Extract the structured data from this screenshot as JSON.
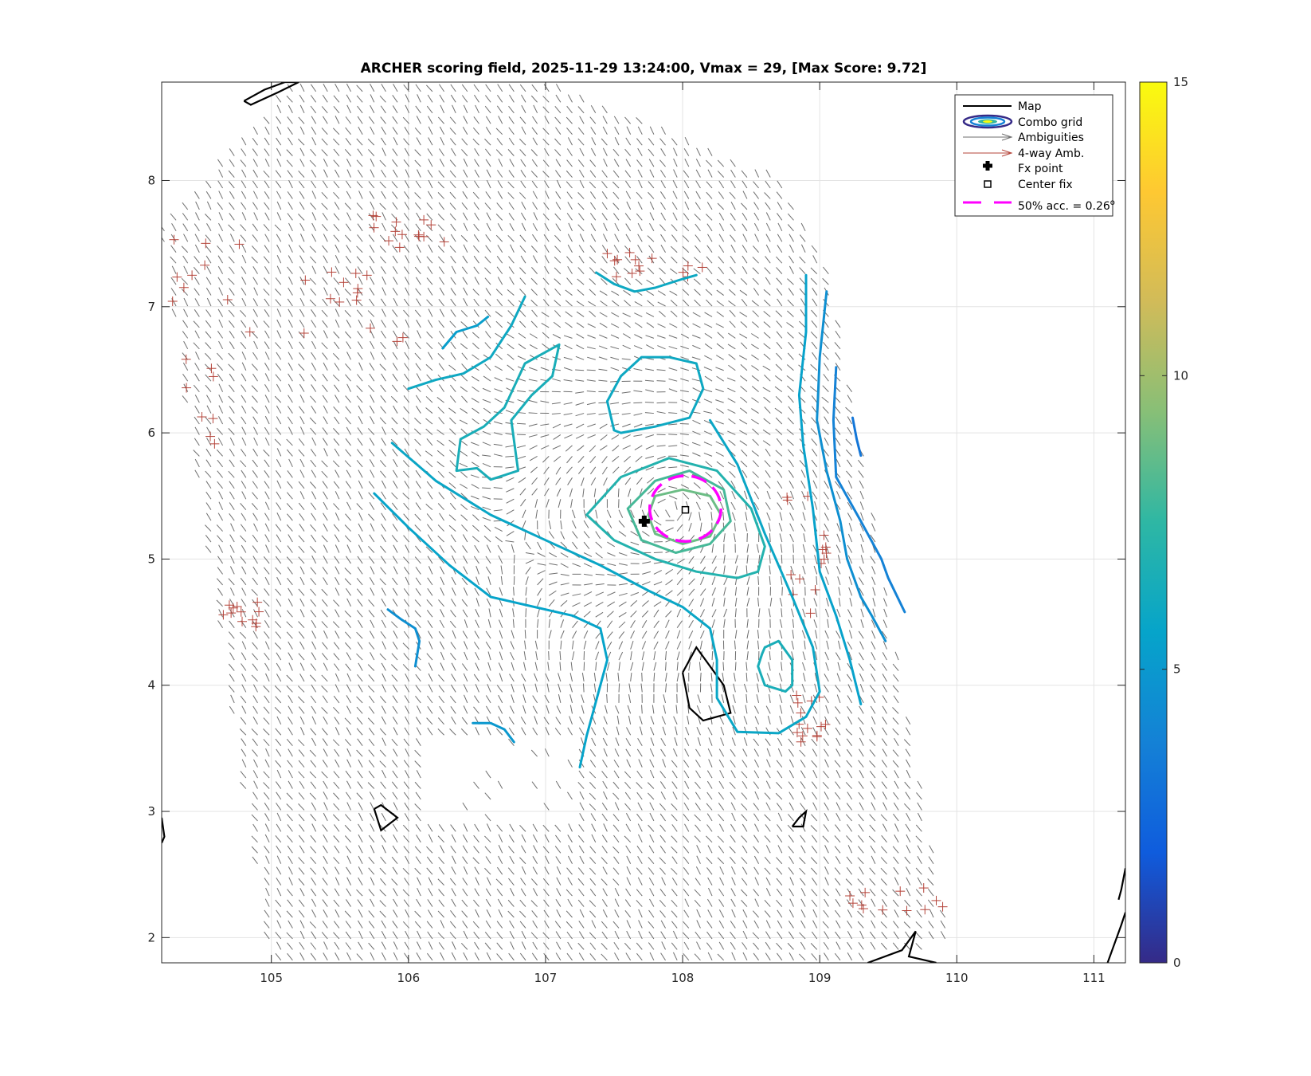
{
  "chart_data": {
    "type": "contour-map",
    "title": "ARCHER scoring field, 2025-11-29 13:24:00, Vmax = 29, [Max Score: 9.72]",
    "xlim": [
      104.2,
      111.23
    ],
    "ylim": [
      1.8,
      8.78
    ],
    "xticks": [
      105,
      106,
      107,
      108,
      109,
      110,
      111
    ],
    "yticks": [
      2,
      3,
      4,
      5,
      6,
      7,
      8
    ],
    "grid": true,
    "legend_position": "top-right",
    "legend": [
      {
        "label": "Map",
        "symbol": "black-line"
      },
      {
        "label": "Combo grid",
        "symbol": "contour-ellipse"
      },
      {
        "label": "Ambiguities",
        "symbol": "gray-arrow"
      },
      {
        "label": "4-way Amb.",
        "symbol": "red-arrow"
      },
      {
        "label": "Fx point",
        "symbol": "plus-marker"
      },
      {
        "label": "Center fix",
        "symbol": "square-marker"
      },
      {
        "label": "50% acc. = 0.26",
        "suffix": "o",
        "symbol": "magenta-dash"
      }
    ],
    "colorbar": {
      "min": 0,
      "max": 15,
      "ticks": [
        0,
        5,
        10,
        15
      ],
      "colormap": "parula"
    },
    "fx_point": {
      "lon": 107.72,
      "lat": 5.3
    },
    "center_fix": {
      "lon": 108.02,
      "lat": 5.39
    },
    "accuracy_circle": {
      "center_lon": 108.02,
      "center_lat": 5.4,
      "radius_deg": 0.26
    },
    "swath": {
      "lon": [
        104.2,
        105.2,
        107.0,
        108.7,
        109.1,
        109.95,
        109.3,
        108.0,
        106.5,
        105.0
      ],
      "lat": [
        7.6,
        8.78,
        8.78,
        8.0,
        7.2,
        1.95,
        1.8,
        1.8,
        1.8,
        1.8
      ]
    },
    "contours": [
      {
        "level": 3.2,
        "lon": [
          109.24,
          109.27,
          109.3
        ],
        "lat": [
          6.12,
          5.95,
          5.82
        ]
      },
      {
        "level": 3.8,
        "lon": [
          109.12,
          109.1,
          109.12,
          109.3,
          109.45,
          109.5,
          109.62
        ],
        "lat": [
          6.52,
          6.1,
          5.65,
          5.3,
          5.0,
          4.85,
          4.58
        ]
      },
      {
        "level": 4.5,
        "lon": [
          109.05,
          109.0,
          108.98,
          109.05,
          109.15,
          109.2,
          109.3,
          109.38,
          109.48
        ],
        "lat": [
          7.12,
          6.6,
          6.1,
          5.7,
          5.3,
          5.0,
          4.7,
          4.55,
          4.35
        ]
      },
      {
        "level": 4.5,
        "lon": [
          105.85,
          105.95,
          106.05,
          106.08,
          106.05
        ],
        "lat": [
          4.6,
          4.52,
          4.45,
          4.35,
          4.15
        ]
      },
      {
        "level": 5.0,
        "lon": [
          106.47,
          106.6,
          106.7,
          106.77
        ],
        "lat": [
          3.7,
          3.7,
          3.65,
          3.55
        ]
      },
      {
        "level": 5.3,
        "lon": [
          106.25,
          106.35,
          106.5,
          106.58
        ],
        "lat": [
          6.67,
          6.8,
          6.85,
          6.92
        ]
      },
      {
        "level": 5.5,
        "lon": [
          108.9,
          108.9,
          108.85,
          108.88,
          108.95,
          109.0,
          109.12,
          109.22,
          109.3
        ],
        "lat": [
          7.25,
          6.8,
          6.3,
          5.9,
          5.4,
          4.9,
          4.55,
          4.2,
          3.85
        ]
      },
      {
        "level": 5.6,
        "lon": [
          105.75,
          106.0,
          106.3,
          106.6,
          107.0,
          107.2,
          107.4,
          107.45,
          107.4,
          107.35,
          107.3,
          107.25
        ],
        "lat": [
          5.52,
          5.25,
          4.95,
          4.7,
          4.6,
          4.55,
          4.45,
          4.2,
          4.0,
          3.8,
          3.6,
          3.35
        ]
      },
      {
        "level": 5.8,
        "lon": [
          105.88,
          106.2,
          106.6,
          107.0,
          107.4,
          107.75,
          108.0,
          108.2,
          108.25,
          108.25,
          108.4,
          108.7,
          108.9,
          109.0,
          108.95,
          108.8,
          108.6,
          108.4,
          108.2
        ],
        "lat": [
          5.92,
          5.62,
          5.35,
          5.15,
          4.95,
          4.75,
          4.62,
          4.45,
          4.2,
          3.9,
          3.63,
          3.62,
          3.75,
          3.95,
          4.3,
          4.7,
          5.2,
          5.75,
          6.1
        ]
      },
      {
        "level": 6.0,
        "lon": [
          106.0,
          106.2,
          106.4,
          106.6,
          106.75,
          106.85
        ],
        "lat": [
          6.35,
          6.42,
          6.47,
          6.6,
          6.85,
          7.08
        ]
      },
      {
        "level": 6.0,
        "lon": [
          107.37,
          107.5,
          107.65,
          107.8,
          108.0,
          108.1
        ],
        "lat": [
          7.27,
          7.18,
          7.12,
          7.15,
          7.22,
          7.25
        ]
      },
      {
        "level": 6.0,
        "lon": [
          107.5,
          107.45,
          107.55,
          107.7,
          107.9,
          108.1,
          108.15,
          108.05,
          107.8,
          107.55,
          107.5
        ],
        "lat": [
          6.02,
          6.25,
          6.45,
          6.6,
          6.6,
          6.55,
          6.35,
          6.12,
          6.05,
          6.0,
          6.02
        ]
      },
      {
        "level": 6.5,
        "lon": [
          106.7,
          106.85,
          107.1,
          107.05,
          106.9,
          106.75,
          106.8,
          106.6,
          106.5,
          106.35,
          106.38,
          106.55,
          106.7
        ],
        "lat": [
          6.2,
          6.55,
          6.7,
          6.45,
          6.3,
          6.1,
          5.7,
          5.63,
          5.72,
          5.7,
          5.95,
          6.05,
          6.2
        ]
      },
      {
        "level": 6.5,
        "lon": [
          108.6,
          108.7,
          108.8,
          108.8,
          108.75,
          108.6,
          108.55,
          108.58,
          108.6
        ],
        "lat": [
          4.3,
          4.35,
          4.2,
          4.0,
          3.95,
          4.0,
          4.15,
          4.25,
          4.3
        ]
      },
      {
        "level": 7.0,
        "lon": [
          107.3,
          107.55,
          107.9,
          108.25,
          108.5,
          108.6,
          108.55,
          108.4,
          108.1,
          107.8,
          107.5,
          107.3
        ],
        "lat": [
          5.35,
          5.65,
          5.8,
          5.7,
          5.4,
          5.1,
          4.9,
          4.85,
          4.9,
          5.0,
          5.15,
          5.35
        ]
      },
      {
        "level": 8.0,
        "lon": [
          107.6,
          107.8,
          108.05,
          108.3,
          108.35,
          108.2,
          107.95,
          107.7,
          107.6
        ],
        "lat": [
          5.4,
          5.62,
          5.7,
          5.55,
          5.3,
          5.12,
          5.05,
          5.15,
          5.4
        ]
      },
      {
        "level": 8.8,
        "lon": [
          107.8,
          108.0,
          108.2,
          108.28,
          108.2,
          108.0,
          107.8,
          107.75,
          107.8
        ],
        "lat": [
          5.5,
          5.55,
          5.5,
          5.35,
          5.18,
          5.12,
          5.2,
          5.35,
          5.5
        ]
      }
    ],
    "map_outlines": [
      {
        "lon": [
          104.8,
          104.95,
          105.1,
          105.2,
          105.05,
          104.85,
          104.8
        ],
        "lat": [
          8.63,
          8.72,
          8.78,
          8.78,
          8.7,
          8.6,
          8.63
        ]
      },
      {
        "lon": [
          108.0,
          108.1,
          108.3,
          108.35,
          108.15,
          108.05,
          108.0
        ],
        "lat": [
          4.1,
          4.3,
          4.0,
          3.78,
          3.72,
          3.82,
          4.1
        ]
      },
      {
        "lon": [
          105.75,
          105.8,
          105.92,
          105.8,
          105.75
        ],
        "lat": [
          3.02,
          2.85,
          2.95,
          3.05,
          3.02
        ]
      },
      {
        "lon": [
          108.8,
          108.85,
          108.9,
          108.88,
          108.8
        ],
        "lat": [
          2.88,
          2.95,
          3.0,
          2.88,
          2.88
        ]
      },
      {
        "lon": [
          109.35,
          109.6,
          109.7,
          109.65,
          109.85
        ],
        "lat": [
          1.8,
          1.9,
          2.05,
          1.85,
          1.8
        ]
      },
      {
        "lon": [
          111.1,
          111.2,
          111.23
        ],
        "lat": [
          1.8,
          2.1,
          2.2
        ]
      },
      {
        "lon": [
          111.18,
          111.2,
          111.23
        ],
        "lat": [
          2.3,
          2.38,
          2.55
        ]
      },
      {
        "lon": [
          104.2,
          104.22,
          104.2
        ],
        "lat": [
          2.95,
          2.8,
          2.75
        ]
      }
    ]
  }
}
